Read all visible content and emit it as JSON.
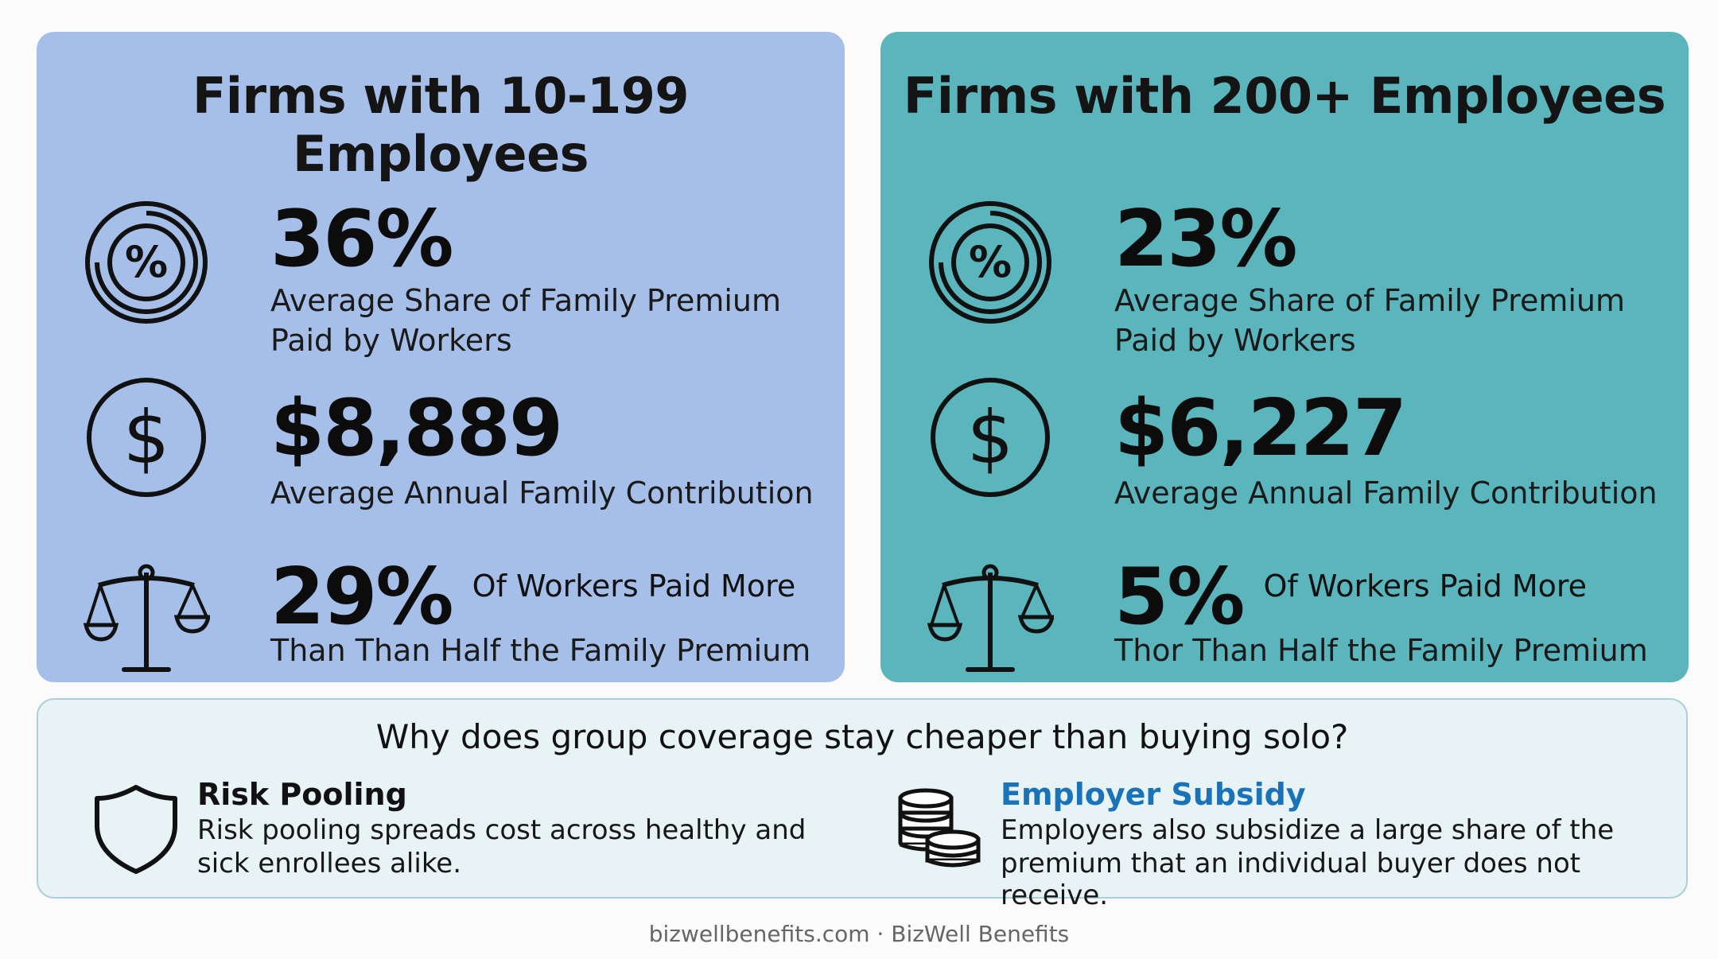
{
  "panels": {
    "small_firms": {
      "title": "Firms with 10-199 Employees",
      "share_value": "36%",
      "share_label_line1": "Average Share of Family Premium",
      "share_label_line2": "Paid by Workers",
      "contribution_value": "$8,889",
      "contribution_label": "Average Annual Family Contribution",
      "over_half_value": "29%",
      "over_half_label_line1": "Of Workers Paid More",
      "over_half_label_line2": "Than Than Half the Family Premium"
    },
    "large_firms": {
      "title": "Firms with 200+ Employees",
      "share_value": "23%",
      "share_label_line1": "Average Share of Family Premium",
      "share_label_line2": "Paid by Workers",
      "contribution_value": "$6,227",
      "contribution_label": "Average Annual Family Contribution",
      "over_half_value": "5%",
      "over_half_label_line1": "Of Workers Paid More",
      "over_half_label_line2": "Thor Than Half the Family Premium"
    }
  },
  "why": {
    "title": "Why does group coverage stay cheaper than buying solo?",
    "risk_pooling": {
      "heading": "Risk Pooling",
      "body_line1": "Risk pooling spreads cost across healthy and",
      "body_line2": "sick enrollees alike.",
      "icon": "shield-icon"
    },
    "employer_subsidy": {
      "heading": "Employer Subsidy",
      "body_line1": "Employers also subsidize a large share of the",
      "body_line2": "premium that an individual buyer does not receive.",
      "icon": "coins-icon",
      "heading_color": "#1a73b8"
    }
  },
  "footer": "bizwellbenefits.com · BizWell Benefits",
  "colors": {
    "small_panel": "#a6bfe8",
    "large_panel": "#5ab6bc",
    "why_background": "#e8f3f6"
  }
}
